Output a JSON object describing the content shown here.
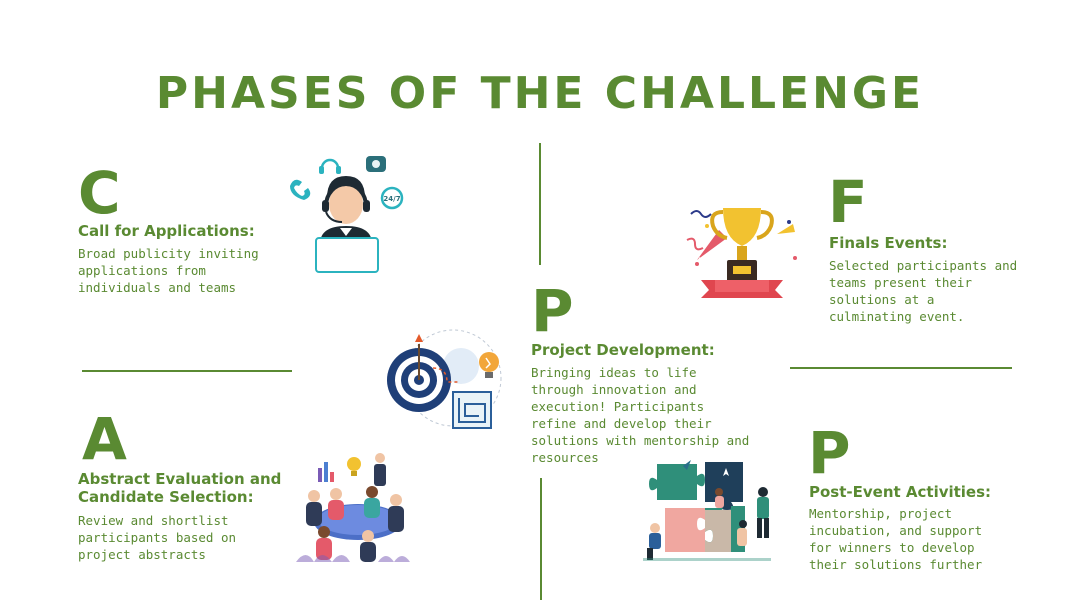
{
  "page": {
    "title": "PHASES OF THE CHALLENGE",
    "accent_color": "#5a8a32"
  },
  "phases": [
    {
      "letter": "C",
      "heading": "Call for Applications:",
      "description": "Broad publicity inviting applications from individuals and teams",
      "icon": "call-center-agent-icon"
    },
    {
      "letter": "A",
      "heading": "Abstract Evaluation and Candidate Selection:",
      "description": "Review and shortlist participants based on project abstracts",
      "icon": "team-meeting-icon"
    },
    {
      "letter": "P",
      "heading": "Project Development:",
      "description": "Bringing ideas to life through innovation and execution! Participants refine and develop their solutions with mentorship and resources",
      "icon": "target-idea-maze-icon"
    },
    {
      "letter": "F",
      "heading": "Finals Events:",
      "description": "Selected participants and teams present their solutions at a culminating event.",
      "icon": "trophy-icon"
    },
    {
      "letter": "P",
      "heading": "Post-Event Activities:",
      "description": "Mentorship, project incubation, and support for winners to develop their solutions further",
      "icon": "puzzle-teamwork-icon"
    }
  ],
  "support_badge": "24/7"
}
